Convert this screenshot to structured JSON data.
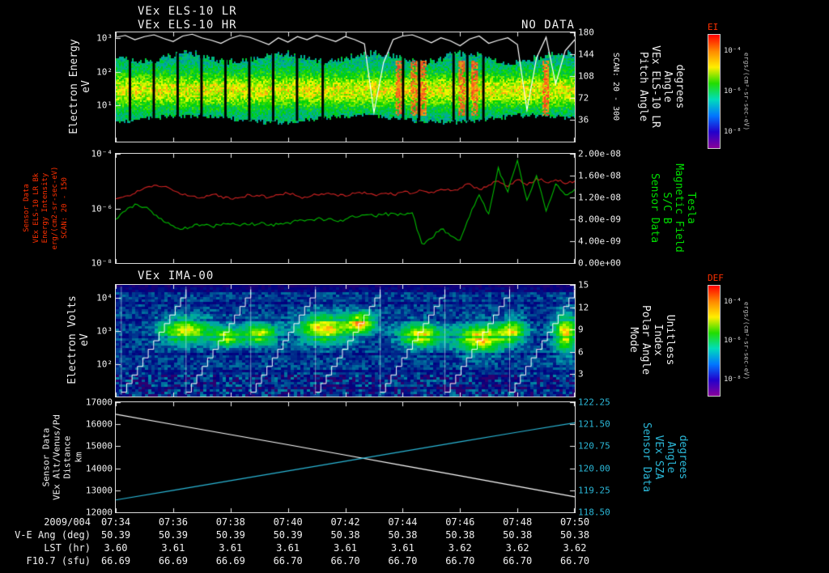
{
  "colors": {
    "background": "#000000",
    "white": "#f0f0f0",
    "red_label": "#ff3000",
    "green_label": "#00dd00",
    "cyan_label": "#2bb8d8",
    "red_series": "#cc2222",
    "green_series": "#00bb00",
    "white_series": "#ffffff",
    "cyan_series": "#2bb8d8"
  },
  "header": {
    "title_line1": "VEx ELS-10 LR",
    "title_line2": "VEx ELS-10 HR",
    "no_data": "NO DATA"
  },
  "panel1": {
    "left_label_lines": [
      "Electron Energy",
      "eV"
    ],
    "left_ticks": [
      "10³",
      "10²",
      "10¹"
    ],
    "right_ticks": [
      "180",
      "144",
      "108",
      "72",
      "36"
    ],
    "right_label_lines": [
      "Pitch Angle",
      "VEx ELS-10 LR",
      "Angle",
      "degrees"
    ],
    "scan_label": "SCAN: 20 - 300"
  },
  "panel2": {
    "left_label_lines": [
      "Sensor Data",
      "VEx ELS-10 LR Bk",
      "Energy Intensity",
      "erg/(cm2-sr-sec-eV)",
      "SCAN: 20 - 150"
    ],
    "left_ticks": [
      "10⁻⁴",
      "10⁻⁶",
      "10⁻⁸"
    ],
    "right_ticks": [
      "2.00e-08",
      "1.60e-08",
      "1.20e-08",
      "8.00e-09",
      "4.00e-09",
      "0.00e+00"
    ],
    "right_label_lines": [
      "Sensor Data",
      "S/C B",
      "Magnetic Field",
      "Tesla"
    ]
  },
  "panel3": {
    "title": "VEx IMA-00",
    "left_label_lines": [
      "Electron Volts",
      "eV"
    ],
    "left_ticks": [
      "10⁴",
      "10³",
      "10²"
    ],
    "right_ticks": [
      "15",
      "12",
      "9",
      "6",
      "3"
    ],
    "right_label_lines": [
      "Mode",
      "Polar Angle",
      "Index",
      "Unitless"
    ]
  },
  "panel4": {
    "left_label_lines": [
      "Sensor Data",
      "VEx Alt/Venus/Pd",
      "Distance",
      "km"
    ],
    "left_ticks": [
      "17000",
      "16000",
      "15000",
      "14000",
      "13000",
      "12000"
    ],
    "right_ticks": [
      "122.25",
      "121.50",
      "120.75",
      "120.00",
      "119.25",
      "118.50"
    ],
    "right_label_lines": [
      "Sensor Data",
      "VEx SZA",
      "Angle",
      "degrees"
    ]
  },
  "colorbar1": {
    "label": "EI",
    "ticks": [
      "10⁻⁴",
      "10⁻⁶",
      "10⁻⁸"
    ],
    "units": "ergs/(cm²-sr-sec-eV)",
    "gradient": [
      "#ff0000",
      "#ff8800",
      "#ffee00",
      "#22dd00",
      "#00ddbb",
      "#0077ff",
      "#2200cc",
      "#880099"
    ]
  },
  "colorbar2": {
    "label": "DEF",
    "ticks": [
      "10⁻⁴",
      "10⁻⁶",
      "10⁻⁸"
    ],
    "units": "ergs/(cm²-sr-sec-eV)",
    "gradient": [
      "#ff0000",
      "#ff8800",
      "#ffee00",
      "#22dd00",
      "#00ddbb",
      "#0077ff",
      "#2200cc",
      "#880099"
    ]
  },
  "bottom": {
    "date": "2009/004",
    "times": [
      "07:34",
      "07:36",
      "07:38",
      "07:40",
      "07:42",
      "07:44",
      "07:46",
      "07:48",
      "07:50"
    ],
    "rows": [
      {
        "label": "V-E Ang (deg)",
        "values": [
          "50.39",
          "50.39",
          "50.39",
          "50.39",
          "50.38",
          "50.38",
          "50.38",
          "50.38",
          "50.38"
        ]
      },
      {
        "label": "LST (hr)",
        "values": [
          "3.60",
          "3.61",
          "3.61",
          "3.61",
          "3.61",
          "3.61",
          "3.62",
          "3.62",
          "3.62"
        ]
      },
      {
        "label": "F10.7 (sfu)",
        "values": [
          "66.69",
          "66.69",
          "66.69",
          "66.70",
          "66.70",
          "66.70",
          "66.70",
          "66.70",
          "66.70"
        ]
      }
    ]
  },
  "chart_data": [
    {
      "type": "heatmap",
      "panel": 1,
      "title": "VEx ELS-10 LR / VEx ELS-10 HR (HR: NO DATA)",
      "x_range": [
        "2009/004 07:34",
        "2009/004 07:50"
      ],
      "ylabel": "Electron Energy (eV)",
      "y_scale": "log",
      "y_ticks": [
        1000,
        100,
        10
      ],
      "y2label": "Pitch Angle VEx ELS-10 LR Angle (degrees), SCAN: 20 - 300",
      "y2_range": [
        0,
        180
      ],
      "y2_ticks": [
        180,
        144,
        108,
        72,
        36
      ],
      "colorbar_label": "EI, ergs/(cm2-sr-sec-eV), 1e-8 to 1e-4",
      "band": {
        "top_frac": 0.22,
        "bottom_frac": 0.78
      },
      "gap_fracs": [
        0.03,
        0.082,
        0.134,
        0.186,
        0.238,
        0.29,
        0.342,
        0.394,
        0.45,
        0.625,
        0.66,
        0.735,
        0.765,
        0.8
      ],
      "red_patch_fracs": [
        0.615,
        0.648,
        0.668,
        0.752,
        0.78,
        0.935
      ],
      "seed": 42,
      "overlay_pitch_angle_deg": [
        172,
        175,
        168,
        173,
        176,
        170,
        165,
        174,
        177,
        171,
        167,
        162,
        170,
        175,
        172,
        166,
        160,
        171,
        164,
        173,
        168,
        175,
        170,
        165,
        173,
        168,
        161,
        48,
        130,
        168,
        174,
        176,
        170,
        163,
        171,
        166,
        158,
        169,
        174,
        162,
        167,
        171,
        160,
        52,
        138,
        172,
        95,
        150,
        168
      ],
      "note": "Broad 10-300 eV electron flux band (green-yellow), vertical data gaps in first half, red flux enhancements 07:43-07:46, white pitch-angle trace near 180 deg with dips"
    },
    {
      "type": "line",
      "panel": 2,
      "x_range": [
        "07:34",
        "07:50"
      ],
      "left_axis": {
        "label": "VEx ELS-10 LR Bk Energy Intensity erg/(cm2-sr-sec-eV), SCAN: 20 - 150",
        "scale": "log10",
        "range": [
          -8,
          -4
        ]
      },
      "right_axis": {
        "label": "S/C B Magnetic Field (Tesla)",
        "range": [
          0,
          2e-08
        ]
      },
      "series": [
        {
          "name": "ELS-10 LR Bk Energy Intensity",
          "color": "#cc2222",
          "axis": "left",
          "units": "log10 erg/(cm2-sr-sec-eV)",
          "values": [
            -5.65,
            -5.55,
            -5.45,
            -5.25,
            -5.15,
            -5.2,
            -5.35,
            -5.5,
            -5.55,
            -5.6,
            -5.5,
            -5.55,
            -5.65,
            -5.6,
            -5.5,
            -5.55,
            -5.6,
            -5.5,
            -5.45,
            -5.55,
            -5.6,
            -5.5,
            -5.45,
            -5.5,
            -5.55,
            -5.45,
            -5.4,
            -5.5,
            -5.45,
            -5.5,
            -5.4,
            -5.45,
            -5.35,
            -5.4,
            -5.3,
            -5.35,
            -5.25,
            -5.1,
            -5.3,
            -5.15,
            -5.0,
            -5.2,
            -4.95,
            -5.15,
            -4.9,
            -5.05,
            -4.95,
            -5.1,
            -5.0
          ]
        },
        {
          "name": "S/C B Magnetic Field",
          "color": "#00bb00",
          "axis": "right",
          "units": "1e-9 Tesla",
          "values": [
            8.0,
            9.5,
            10.8,
            10.2,
            8.8,
            7.6,
            6.8,
            6.2,
            6.6,
            7.0,
            6.7,
            6.9,
            7.1,
            6.8,
            7.0,
            7.2,
            6.9,
            7.1,
            7.4,
            7.7,
            7.9,
            8.1,
            7.9,
            7.7,
            8.0,
            8.4,
            8.8,
            8.6,
            8.9,
            9.1,
            8.9,
            9.2,
            3.6,
            4.5,
            6.2,
            5.0,
            4.2,
            8.5,
            12.5,
            9.0,
            17.5,
            13.0,
            18.8,
            11.5,
            16.0,
            9.5,
            14.5,
            12.5,
            13.5
          ]
        }
      ]
    },
    {
      "type": "heatmap",
      "panel": 3,
      "title": "VEx IMA-00",
      "x_range": [
        "07:34",
        "07:50"
      ],
      "ylabel": "Electron Volts (eV)",
      "y_scale": "log",
      "y_ticks": [
        10000,
        1000,
        100
      ],
      "y2label": "Mode / Polar Angle / Index (Unitless)",
      "y2_range": [
        0,
        15
      ],
      "y2_ticks": [
        15,
        12,
        9,
        6,
        3
      ],
      "colorbar_label": "DEF, ergs/(cm2-sr-sec-eV)",
      "seed": 1234,
      "blobs": [
        {
          "x": 0.15,
          "y": 0.4,
          "rx": 0.055,
          "ry": 0.11,
          "v": 0.55
        },
        {
          "x": 0.24,
          "y": 0.46,
          "rx": 0.03,
          "ry": 0.08,
          "v": 0.5
        },
        {
          "x": 0.31,
          "y": 0.43,
          "rx": 0.035,
          "ry": 0.09,
          "v": 0.55
        },
        {
          "x": 0.45,
          "y": 0.38,
          "rx": 0.055,
          "ry": 0.12,
          "v": 0.62
        },
        {
          "x": 0.53,
          "y": 0.33,
          "rx": 0.03,
          "ry": 0.09,
          "v": 0.6
        },
        {
          "x": 0.66,
          "y": 0.44,
          "rx": 0.045,
          "ry": 0.1,
          "v": 0.6
        },
        {
          "x": 0.79,
          "y": 0.47,
          "rx": 0.05,
          "ry": 0.12,
          "v": 0.65
        },
        {
          "x": 0.86,
          "y": 0.4,
          "rx": 0.03,
          "ry": 0.1,
          "v": 0.5
        },
        {
          "x": 0.975,
          "y": 0.42,
          "rx": 0.025,
          "ry": 0.16,
          "v": 0.6
        }
      ],
      "stairs": {
        "cycles": 7,
        "x0": 0.012,
        "width_frac": 0.141,
        "steps": 12
      },
      "note": "Ion energy-time spectrogram: dark blue background noise, green-yellow flux blobs near 1 keV, repeating white elevation-scan staircase lines"
    },
    {
      "type": "line",
      "panel": 4,
      "x": [
        "07:34",
        "07:36",
        "07:38",
        "07:40",
        "07:42",
        "07:44",
        "07:46",
        "07:48",
        "07:50"
      ],
      "left_axis": {
        "label": "VEx Alt/Venus/Pd Distance (km)",
        "range": [
          12000,
          17000
        ]
      },
      "right_axis": {
        "label": "VEx SZA Angle (degrees)",
        "range": [
          118.5,
          122.25
        ]
      },
      "series": [
        {
          "name": "Altitude",
          "color": "#ffffff",
          "axis": "left",
          "values": [
            16450,
            15990,
            15530,
            15070,
            14600,
            14130,
            13660,
            13180,
            12700
          ]
        },
        {
          "name": "SZA",
          "color": "#2bb8d8",
          "axis": "right",
          "values": [
            118.92,
            119.25,
            119.58,
            119.91,
            120.24,
            120.57,
            120.9,
            121.23,
            121.55
          ]
        }
      ]
    }
  ]
}
